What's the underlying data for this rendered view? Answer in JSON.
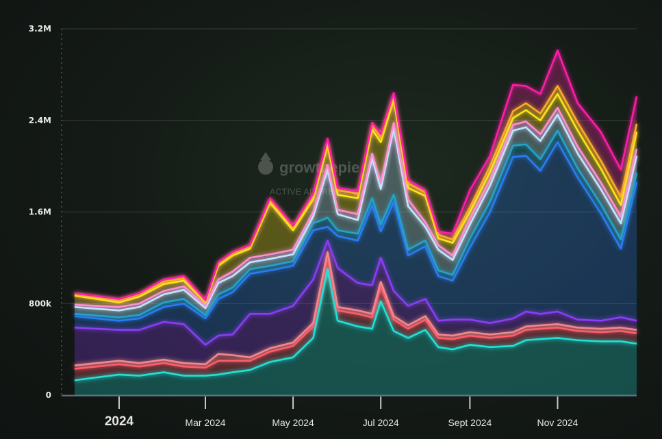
{
  "watermark": {
    "brand": "growthepie",
    "subtitle": "ACTIVE ADDRESSES"
  },
  "chart_data": {
    "type": "area",
    "stacked": true,
    "ylim": [
      0,
      3200000
    ],
    "yticks": [
      0,
      800000,
      1600000,
      2400000,
      3200000
    ],
    "ytick_labels": [
      "0",
      "800k",
      "1.6M",
      "2.4M",
      "3.2M"
    ],
    "x_range": [
      "2024-01-01",
      "2024-12-26"
    ],
    "xticks": [
      {
        "label": "2024",
        "date": "2024-01-01"
      },
      {
        "label": "Mar 2024",
        "date": "2024-03-01"
      },
      {
        "label": "May 2024",
        "date": "2024-05-01"
      },
      {
        "label": "Jul 2024",
        "date": "2024-07-01"
      },
      {
        "label": "Sept 2024",
        "date": "2024-09-01"
      },
      {
        "label": "Nov 2024",
        "date": "2024-11-01"
      }
    ],
    "grid": true,
    "x": [
      "2023-12-01",
      "2024-01-01",
      "2024-01-15",
      "2024-02-01",
      "2024-02-15",
      "2024-03-01",
      "2024-03-10",
      "2024-03-20",
      "2024-04-01",
      "2024-04-15",
      "2024-05-01",
      "2024-05-15",
      "2024-05-25",
      "2024-06-01",
      "2024-06-15",
      "2024-06-25",
      "2024-07-01",
      "2024-07-10",
      "2024-07-20",
      "2024-08-01",
      "2024-08-10",
      "2024-08-20",
      "2024-09-01",
      "2024-09-15",
      "2024-10-01",
      "2024-10-10",
      "2024-10-20",
      "2024-11-01",
      "2024-11-15",
      "2024-12-01",
      "2024-12-15",
      "2024-12-26"
    ],
    "series": [
      {
        "color": "#24e0d6",
        "values": [
          130000,
          180000,
          170000,
          200000,
          170000,
          170000,
          180000,
          200000,
          220000,
          290000,
          330000,
          500000,
          1100000,
          650000,
          600000,
          580000,
          820000,
          560000,
          500000,
          570000,
          420000,
          400000,
          440000,
          420000,
          430000,
          480000,
          490000,
          500000,
          480000,
          470000,
          470000,
          450000
        ]
      },
      {
        "color": "#ff5b6e",
        "values": [
          100000,
          90000,
          80000,
          80000,
          80000,
          70000,
          120000,
          100000,
          80000,
          90000,
          100000,
          100000,
          110000,
          90000,
          110000,
          100000,
          130000,
          100000,
          80000,
          90000,
          80000,
          90000,
          80000,
          80000,
          90000,
          90000,
          90000,
          90000,
          80000,
          80000,
          90000,
          90000
        ]
      },
      {
        "color": "#f0898e",
        "values": [
          30000,
          30000,
          30000,
          30000,
          30000,
          30000,
          60000,
          50000,
          30000,
          30000,
          30000,
          30000,
          40000,
          30000,
          30000,
          30000,
          40000,
          30000,
          30000,
          30000,
          30000,
          30000,
          30000,
          30000,
          30000,
          30000,
          30000,
          30000,
          30000,
          30000,
          30000,
          30000
        ]
      },
      {
        "color": "#8a3df5",
        "values": [
          330000,
          270000,
          290000,
          330000,
          340000,
          170000,
          160000,
          180000,
          380000,
          300000,
          320000,
          380000,
          100000,
          340000,
          240000,
          250000,
          210000,
          220000,
          170000,
          150000,
          120000,
          140000,
          110000,
          100000,
          120000,
          130000,
          100000,
          110000,
          70000,
          70000,
          90000,
          80000
        ]
      },
      {
        "color": "#2b7bf2",
        "values": [
          100000,
          80000,
          100000,
          130000,
          180000,
          230000,
          320000,
          370000,
          350000,
          380000,
          350000,
          430000,
          120000,
          280000,
          370000,
          700000,
          230000,
          780000,
          440000,
          460000,
          390000,
          340000,
          630000,
          970000,
          1410000,
          1360000,
          1250000,
          1480000,
          1240000,
          940000,
          600000,
          1210000
        ]
      },
      {
        "color": "#25a2c9",
        "values": [
          20000,
          30000,
          30000,
          40000,
          40000,
          30000,
          40000,
          40000,
          40000,
          40000,
          40000,
          60000,
          80000,
          50000,
          60000,
          60000,
          60000,
          60000,
          50000,
          50000,
          50000,
          50000,
          80000,
          90000,
          100000,
          100000,
          100000,
          100000,
          80000,
          80000,
          80000,
          80000
        ]
      },
      {
        "color": "#bfe6ff",
        "values": [
          60000,
          60000,
          70000,
          70000,
          80000,
          60000,
          100000,
          100000,
          60000,
          60000,
          60000,
          60000,
          420000,
          140000,
          120000,
          350000,
          310000,
          580000,
          380000,
          120000,
          180000,
          130000,
          120000,
          140000,
          130000,
          150000,
          160000,
          140000,
          130000,
          130000,
          140000,
          150000
        ]
      },
      {
        "color": "#ff8fd0",
        "values": [
          20000,
          30000,
          30000,
          30000,
          30000,
          20000,
          30000,
          40000,
          40000,
          40000,
          40000,
          40000,
          40000,
          40000,
          50000,
          40000,
          50000,
          50000,
          60000,
          40000,
          40000,
          40000,
          50000,
          50000,
          50000,
          50000,
          60000,
          60000,
          60000,
          60000,
          60000,
          60000
        ]
      },
      {
        "color": "#ffe11a",
        "values": [
          80000,
          40000,
          60000,
          60000,
          50000,
          30000,
          120000,
          140000,
          80000,
          450000,
          170000,
          110000,
          170000,
          130000,
          140000,
          210000,
          360000,
          200000,
          100000,
          230000,
          60000,
          110000,
          60000,
          70000,
          60000,
          100000,
          120000,
          120000,
          140000,
          120000,
          100000,
          150000
        ]
      },
      {
        "color": "#ffaa2b",
        "values": [
          10000,
          20000,
          20000,
          20000,
          20000,
          10000,
          20000,
          20000,
          20000,
          20000,
          30000,
          30000,
          40000,
          40000,
          40000,
          40000,
          40000,
          40000,
          40000,
          30000,
          30000,
          30000,
          40000,
          50000,
          60000,
          60000,
          60000,
          70000,
          70000,
          70000,
          70000,
          70000
        ]
      },
      {
        "color": "#ff1fa8",
        "values": [
          10000,
          10000,
          10000,
          20000,
          20000,
          10000,
          10000,
          10000,
          10000,
          20000,
          10000,
          20000,
          20000,
          20000,
          20000,
          20000,
          30000,
          20000,
          30000,
          20000,
          30000,
          50000,
          150000,
          90000,
          230000,
          150000,
          170000,
          310000,
          170000,
          250000,
          240000,
          240000
        ]
      }
    ]
  }
}
